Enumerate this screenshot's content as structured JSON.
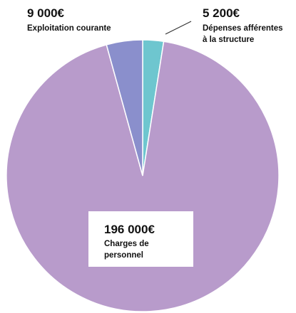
{
  "chart_data": {
    "type": "pie",
    "title": "",
    "colors": {
      "charges_personnel": "#b89bcb",
      "structure": "#6ec6cf",
      "exploitation": "#8a8fcc"
    },
    "slices": [
      {
        "key": "structure",
        "value": 5200,
        "value_label": "5 200€",
        "label_lines": [
          "Dépenses afférentes",
          "à la structure"
        ]
      },
      {
        "key": "charges_personnel",
        "value": 196000,
        "value_label": "196 000€",
        "label_lines": [
          "Charges de",
          "personnel"
        ]
      },
      {
        "key": "exploitation",
        "value": 9000,
        "value_label": "9 000€",
        "label_lines": [
          "Exploitation courante"
        ]
      }
    ],
    "start_angle_deg": 0,
    "direction": "clockwise",
    "legend": "none",
    "label_placement": "callouts"
  }
}
